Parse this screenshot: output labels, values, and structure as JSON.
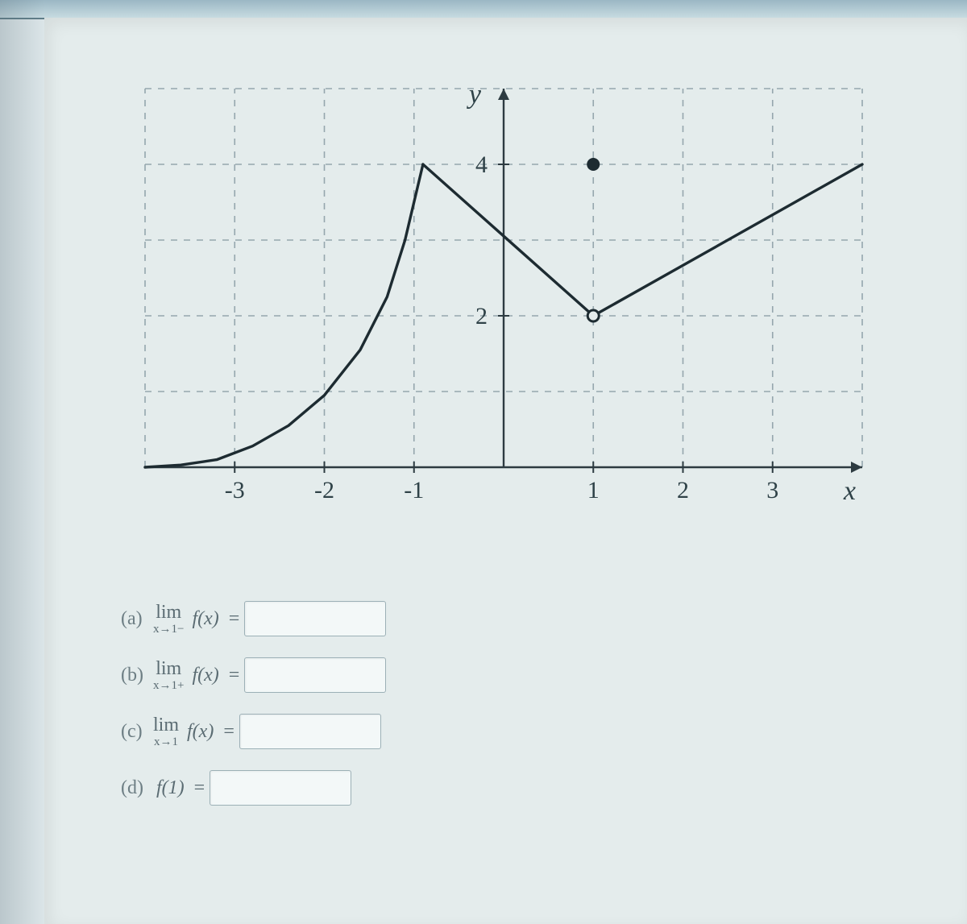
{
  "chart": {
    "type": "line",
    "background_color": "#e4ecec",
    "grid_color": "#95a6ad",
    "grid_dash": "8,8",
    "axis_color": "#2d3b41",
    "axis_width": 2.4,
    "curve_color": "#1d2b31",
    "curve_width": 3.4,
    "x": {
      "min": -4,
      "max": 4,
      "ticks": [
        -3,
        -2,
        -1,
        1,
        2,
        3
      ],
      "label": "x"
    },
    "y": {
      "min": 0,
      "max": 5,
      "ticks": [
        2,
        4
      ],
      "label": "y"
    },
    "tick_fontsize": 30,
    "label_fontsize": 34,
    "segments": [
      {
        "kind": "curve",
        "points": [
          [
            -4,
            0
          ],
          [
            -3.6,
            0.03
          ],
          [
            -3.2,
            0.1
          ],
          [
            -2.8,
            0.28
          ],
          [
            -2.4,
            0.55
          ],
          [
            -2.0,
            0.95
          ],
          [
            -1.6,
            1.55
          ],
          [
            -1.3,
            2.25
          ],
          [
            -1.1,
            3.0
          ],
          [
            -1.0,
            3.5
          ],
          [
            -0.9,
            4.0
          ]
        ]
      },
      {
        "kind": "line",
        "points": [
          [
            -0.9,
            4.0
          ],
          [
            1,
            2
          ]
        ]
      },
      {
        "kind": "line",
        "points": [
          [
            1,
            2
          ],
          [
            4,
            4
          ]
        ]
      }
    ],
    "points": [
      {
        "x": 1,
        "y": 2,
        "style": "open",
        "r": 7,
        "stroke": "#1d2b31",
        "fill": "#e4ecec"
      },
      {
        "x": 1,
        "y": 4,
        "style": "closed",
        "r": 8,
        "fill": "#1d2b31"
      }
    ]
  },
  "questions": {
    "a": {
      "letter": "(a)",
      "limtext": "lim",
      "sub": "x→1−",
      "fx": "f(x)",
      "eq": "="
    },
    "b": {
      "letter": "(b)",
      "limtext": "lim",
      "sub": "x→1+",
      "fx": "f(x)",
      "eq": "="
    },
    "c": {
      "letter": "(c)",
      "limtext": "lim",
      "sub": "x→1",
      "fx": "f(x)",
      "eq": "="
    },
    "d": {
      "letter": "(d)",
      "fx": "f(1)",
      "eq": "="
    }
  }
}
